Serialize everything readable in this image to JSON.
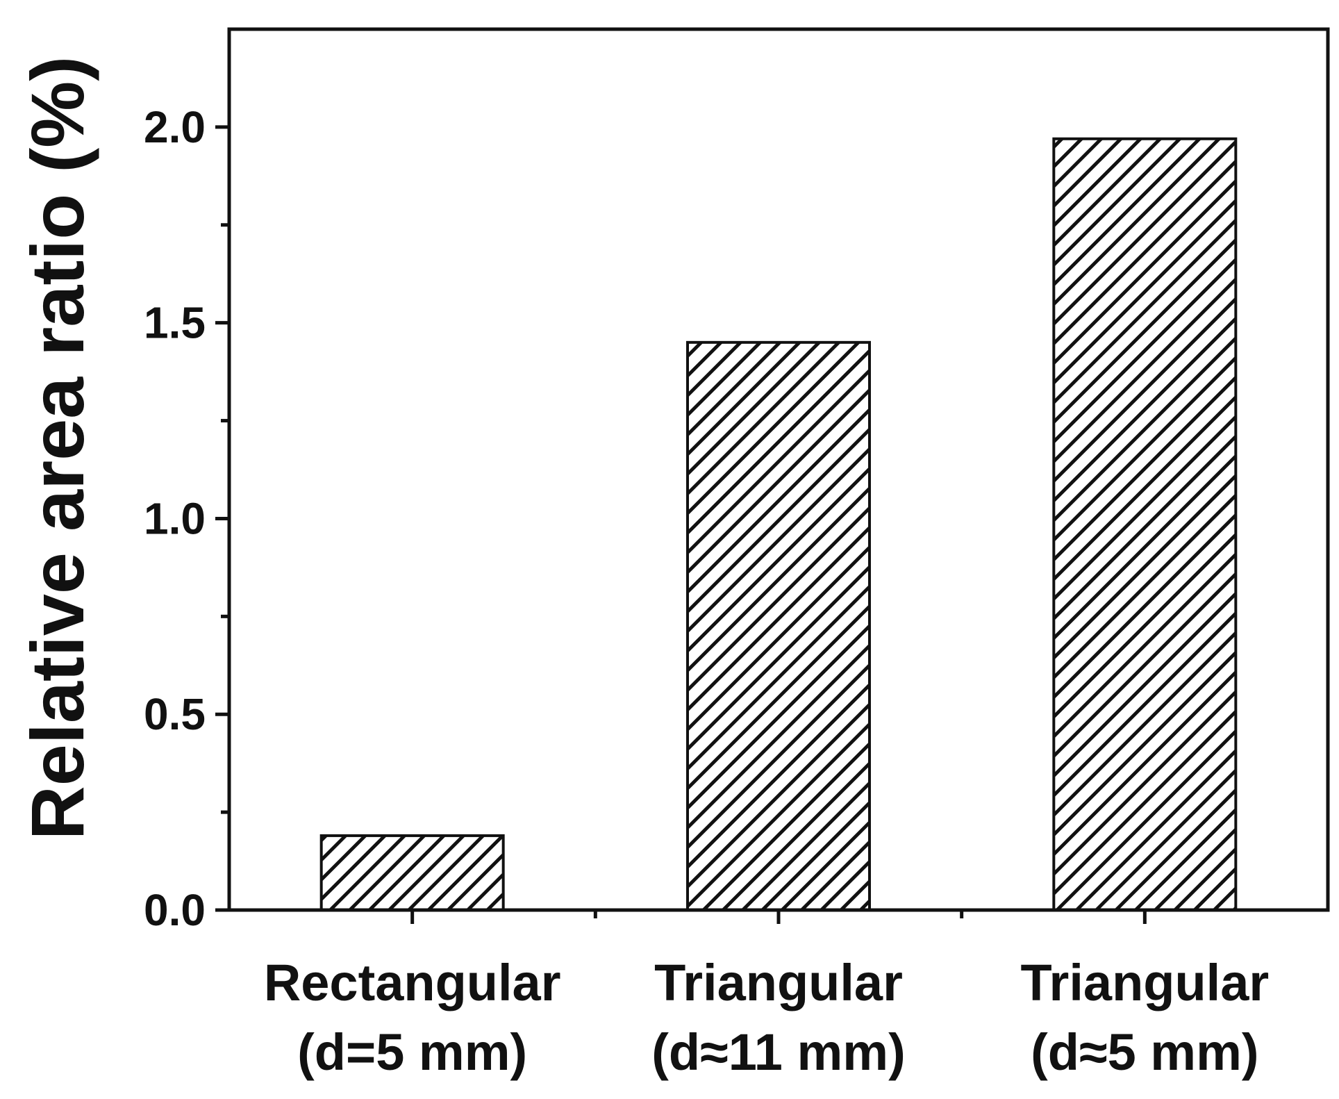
{
  "chart_data": {
    "type": "bar",
    "categories": [
      [
        "Rectangular",
        "(d=5 mm)"
      ],
      [
        "Triangular",
        "(d≈11 mm)"
      ],
      [
        "Triangular",
        "(d≈5 mm)"
      ]
    ],
    "values": [
      0.19,
      1.45,
      1.97
    ],
    "title": "",
    "xlabel": "",
    "ylabel": "Relative area ratio (%)",
    "ylim": [
      0,
      2.25
    ],
    "yticks_major": [
      "0.0",
      "0.5",
      "1.0",
      "1.5",
      "2.0"
    ],
    "yticks_minor": [
      0.25,
      0.75,
      1.25,
      1.75
    ],
    "grid": false,
    "legend": "none",
    "bar_fill": "hatched",
    "colors": {
      "axis": "#111111",
      "bar_edge": "#111111",
      "hatch": "#111111",
      "bar_background": "#ffffff",
      "background": "#ffffff"
    }
  }
}
